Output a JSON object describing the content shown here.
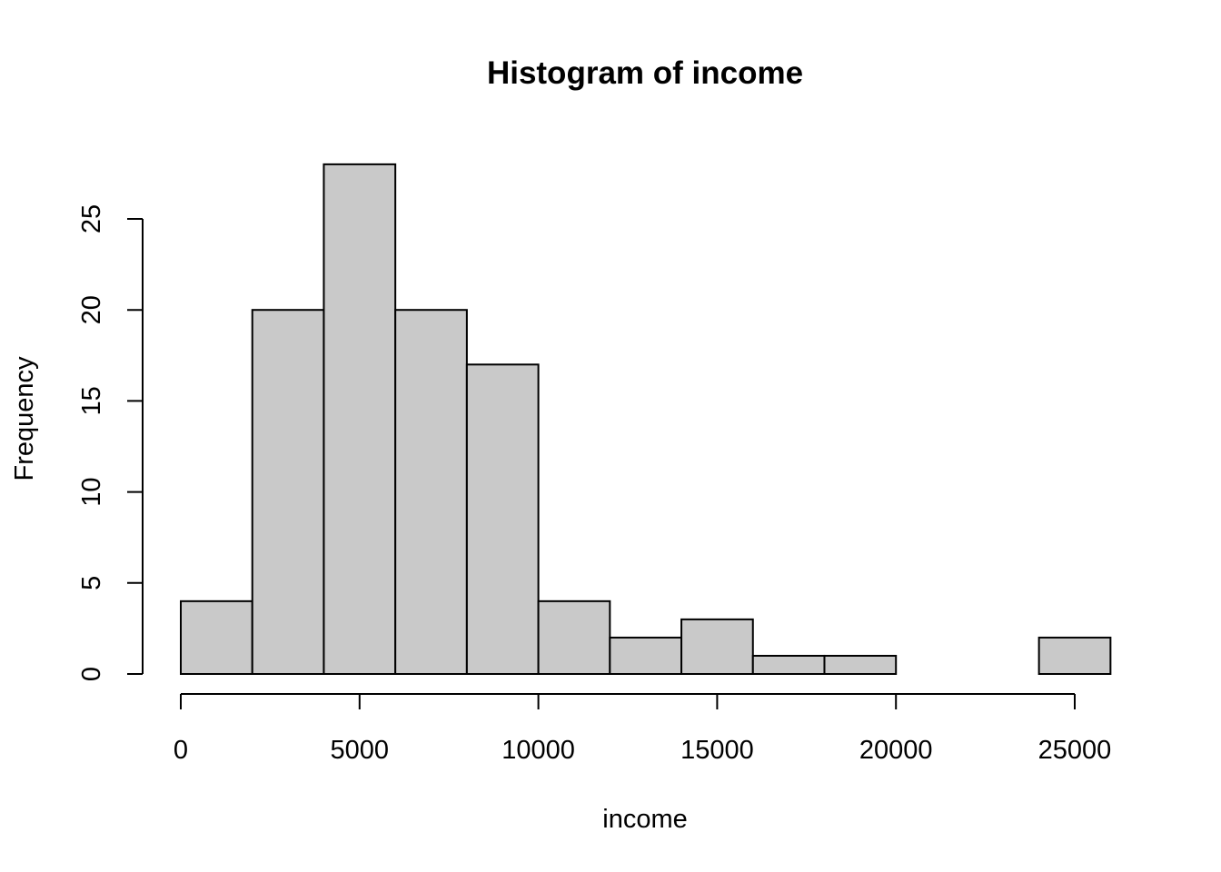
{
  "chart_data": {
    "type": "bar",
    "title": "Histogram of income",
    "xlabel": "income",
    "ylabel": "Frequency",
    "bins": [
      {
        "start": 0,
        "end": 2000,
        "count": 4
      },
      {
        "start": 2000,
        "end": 4000,
        "count": 20
      },
      {
        "start": 4000,
        "end": 6000,
        "count": 28
      },
      {
        "start": 6000,
        "end": 8000,
        "count": 20
      },
      {
        "start": 8000,
        "end": 10000,
        "count": 17
      },
      {
        "start": 10000,
        "end": 12000,
        "count": 4
      },
      {
        "start": 12000,
        "end": 14000,
        "count": 2
      },
      {
        "start": 14000,
        "end": 16000,
        "count": 3
      },
      {
        "start": 16000,
        "end": 18000,
        "count": 1
      },
      {
        "start": 18000,
        "end": 20000,
        "count": 1
      },
      {
        "start": 20000,
        "end": 22000,
        "count": 0
      },
      {
        "start": 22000,
        "end": 24000,
        "count": 0
      },
      {
        "start": 24000,
        "end": 26000,
        "count": 2
      }
    ],
    "xlim": [
      0,
      26000
    ],
    "ylim": [
      0,
      28
    ],
    "xticks": [
      0,
      5000,
      10000,
      15000,
      20000,
      25000
    ],
    "xtick_labels": [
      "0",
      "5000",
      "10000",
      "15000",
      "20000",
      "25000"
    ],
    "yticks": [
      0,
      5,
      10,
      15,
      20,
      25
    ],
    "ytick_labels": [
      "0",
      "5",
      "10",
      "15",
      "20",
      "25"
    ],
    "bar_fill": "#c9c9c9",
    "bar_stroke": "#000000",
    "grid": false,
    "legend": "none"
  }
}
